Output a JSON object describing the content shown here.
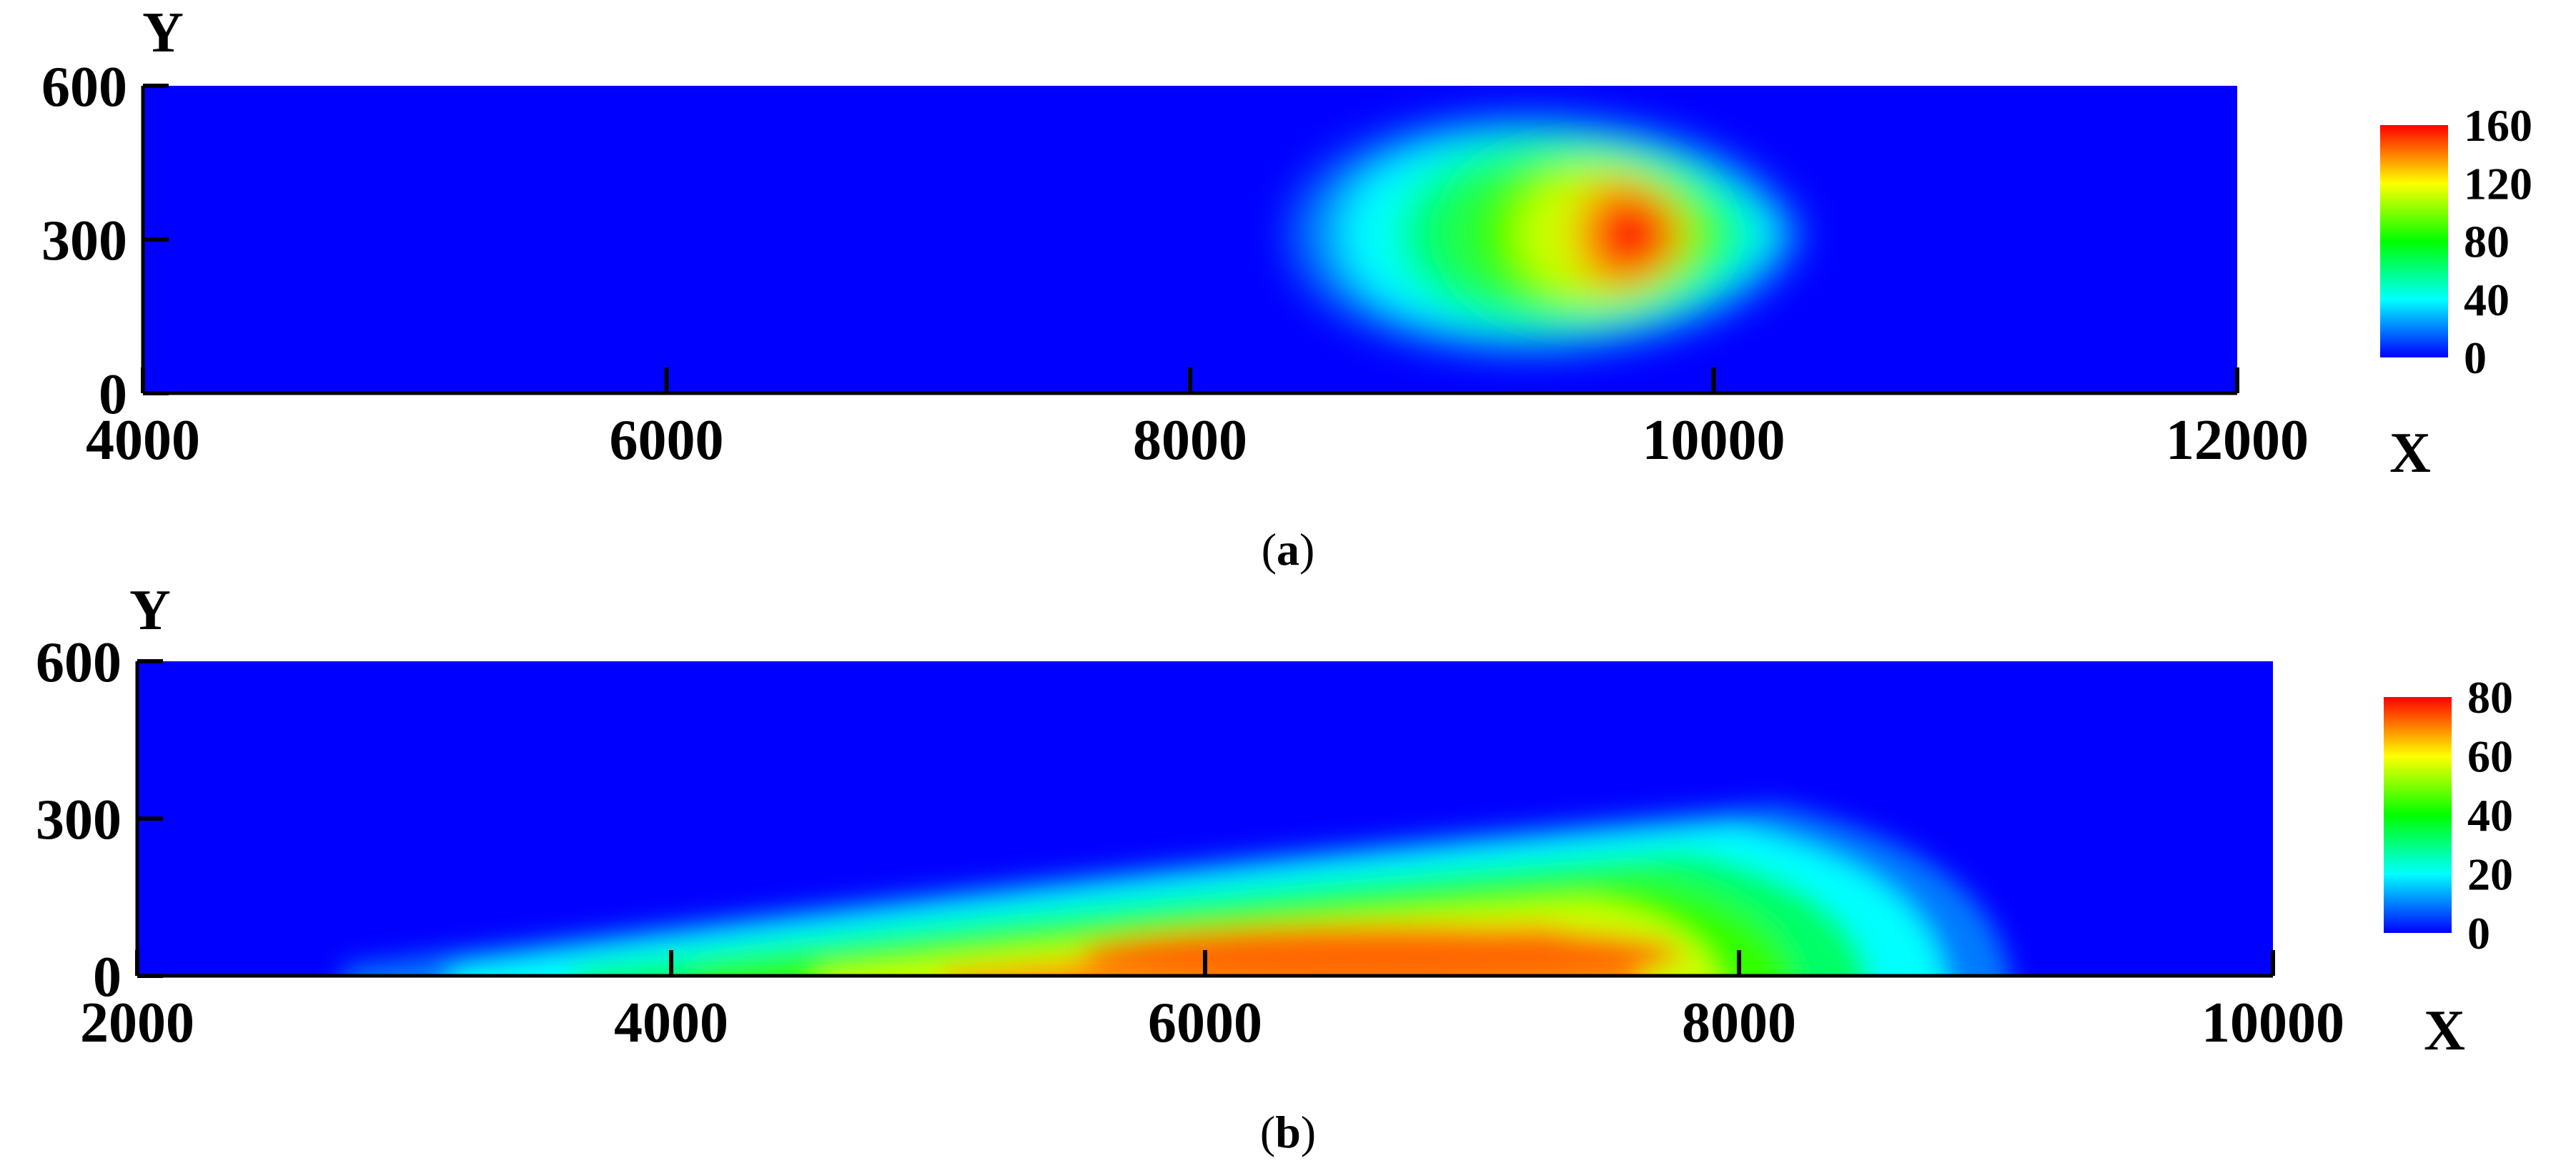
{
  "chart_data": [
    {
      "type": "heatmap",
      "panel_label": "a",
      "xlabel": "X",
      "ylabel": "Y",
      "xlim": [
        4000,
        12000
      ],
      "ylim": [
        0,
        600
      ],
      "x_ticks": [
        4000,
        6000,
        8000,
        10000,
        12000
      ],
      "y_ticks": [
        0,
        300,
        600
      ],
      "colorbar": {
        "range": [
          0,
          160
        ],
        "ticks": [
          0,
          40,
          80,
          120,
          160
        ]
      },
      "colormap": [
        "#0000ff",
        "#00ffff",
        "#00ff00",
        "#ffff00",
        "#ff0000"
      ],
      "background_value": 0,
      "field": {
        "shape": "blob",
        "peak": {
          "x": 9700,
          "y": 310,
          "value": 160
        },
        "core_radius": {
          "x": 300,
          "y": 140
        },
        "plume_extent": {
          "x_min": 8200,
          "x_max": 10400,
          "y_min": 0,
          "y_max": 600
        }
      }
    },
    {
      "type": "heatmap",
      "panel_label": "b",
      "xlabel": "X",
      "ylabel": "Y",
      "xlim": [
        2000,
        10000
      ],
      "ylim": [
        0,
        600
      ],
      "x_ticks": [
        2000,
        4000,
        6000,
        8000,
        10000
      ],
      "y_ticks": [
        0,
        300,
        600
      ],
      "colorbar": {
        "range": [
          0,
          80
        ],
        "ticks": [
          0,
          20,
          40,
          60,
          80
        ]
      },
      "colormap": [
        "#0000ff",
        "#00ffff",
        "#00ff00",
        "#ffff00",
        "#ff0000"
      ],
      "background_value": 0,
      "field": {
        "shape": "wedge",
        "peak": {
          "x": 6500,
          "y": 30,
          "value": 80
        },
        "front_x": 9000,
        "start_x": 2400,
        "max_height": 330
      }
    }
  ]
}
